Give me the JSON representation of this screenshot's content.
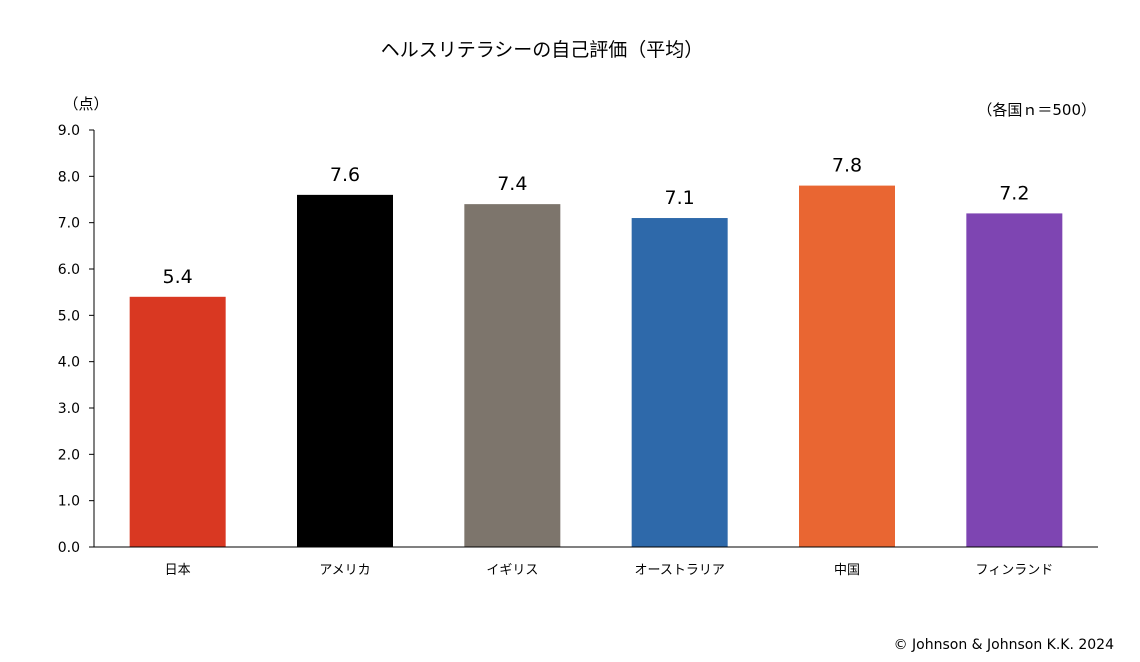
{
  "chart_data": {
    "type": "bar",
    "title": "ヘルスリテラシーの自己評価（平均）",
    "ylabel": "（点）",
    "sample_note": "（各国ｎ＝500）",
    "categories": [
      "日本",
      "アメリカ",
      "イギリス",
      "オーストラリア",
      "中国",
      "フィンランド"
    ],
    "values": [
      5.4,
      7.6,
      7.4,
      7.1,
      7.8,
      7.2
    ],
    "value_labels": [
      "5.4",
      "7.6",
      "7.4",
      "7.1",
      "7.8",
      "7.2"
    ],
    "colors": [
      "#D93822",
      "#000000",
      "#7D756C",
      "#2E69AA",
      "#E96632",
      "#7E45B2"
    ],
    "ylim": [
      0,
      9
    ],
    "yticks": [
      "0.0",
      "1.0",
      "2.0",
      "3.0",
      "4.0",
      "5.0",
      "6.0",
      "7.0",
      "8.0",
      "9.0"
    ],
    "grid": false,
    "legend": "none"
  },
  "copyright": "© Johnson & Johnson K.K. 2024"
}
